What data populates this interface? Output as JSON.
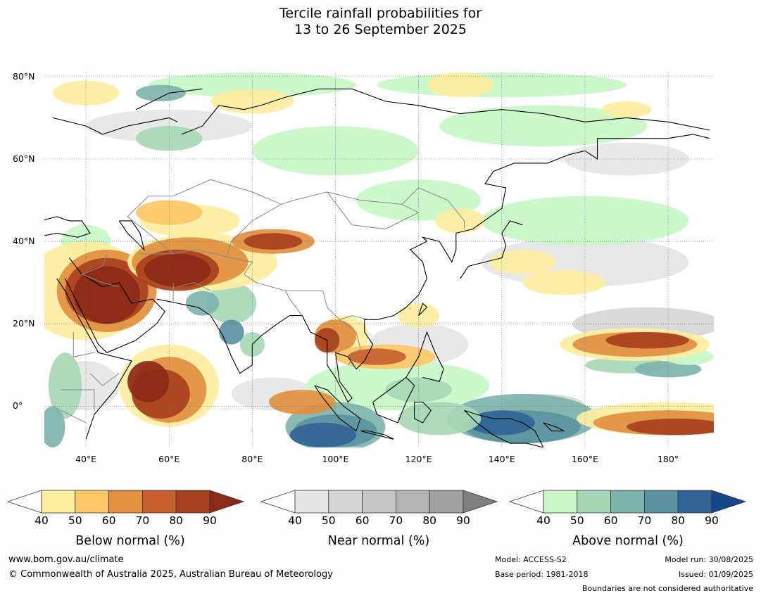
{
  "title": {
    "line1": "Tercile rainfall probabilities for",
    "line2": "13 to 26 September 2025"
  },
  "map": {
    "lat_labels": [
      "80°N",
      "60°N",
      "40°N",
      "20°N",
      "0°"
    ],
    "lon_labels": [
      "40°E",
      "60°E",
      "80°E",
      "100°E",
      "120°E",
      "140°E",
      "160°E",
      "180°"
    ],
    "extent": {
      "lon_min": 30,
      "lon_max": 191,
      "lat_min": -10,
      "lat_max": 81
    }
  },
  "legends": [
    {
      "title": "Below normal (%)",
      "ticks": [
        "40",
        "50",
        "60",
        "70",
        "80",
        "90"
      ],
      "colors": [
        "#ffffff",
        "#fdeea0",
        "#fdc766",
        "#e09040",
        "#c86030",
        "#a84020",
        "#8b2a18"
      ]
    },
    {
      "title": "Near normal (%)",
      "ticks": [
        "40",
        "50",
        "60",
        "70",
        "80",
        "90"
      ],
      "colors": [
        "#ffffff",
        "#e6e6e6",
        "#d6d6d6",
        "#c6c6c6",
        "#b2b2b2",
        "#a0a0a0",
        "#808080"
      ]
    },
    {
      "title": "Above normal (%)",
      "ticks": [
        "40",
        "50",
        "60",
        "70",
        "80",
        "90"
      ],
      "colors": [
        "#ffffff",
        "#c8f8c8",
        "#a6d8b6",
        "#7eb4ac",
        "#5a92a0",
        "#306496",
        "#18488a"
      ]
    }
  ],
  "footer": {
    "website": "www.bom.gov.au/climate",
    "copyright": "© Commonwealth of Australia 2025, Australian Bureau of Meteorology",
    "model": "Model: ACCESS-S2",
    "base_period": "Base period: 1981-2018",
    "model_run": "Model run: 30/08/2025",
    "issued": "Issued: 01/09/2025",
    "disclaimer": "Boundaries are not considered authoritative"
  }
}
